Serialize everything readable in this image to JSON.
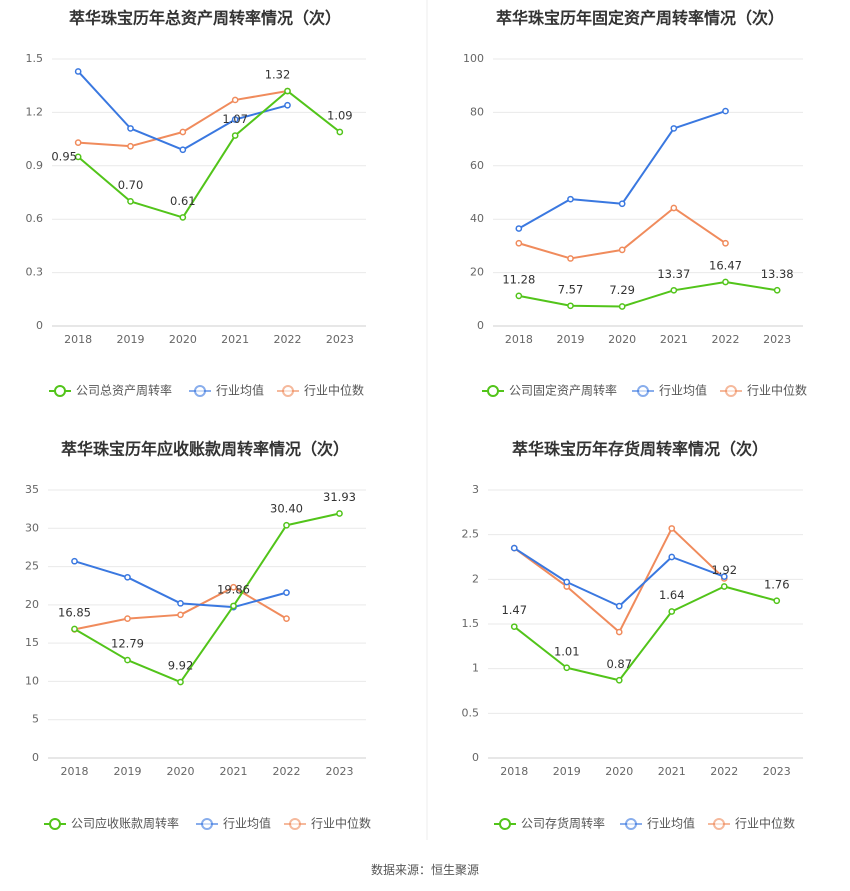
{
  "source": "数据来源：恒生聚源",
  "chart_data": [
    {
      "type": "line",
      "title": "萃华珠宝历年总资产周转率情况（次）",
      "categories": [
        "2018",
        "2019",
        "2020",
        "2021",
        "2022",
        "2023"
      ],
      "y_ticks": [
        "0",
        "0.3",
        "0.6",
        "0.9",
        "1.2",
        "1.5"
      ],
      "ylim": [
        0,
        1.5
      ],
      "series": [
        {
          "name": "公司总资产周转率",
          "color": "#52c41a",
          "values": [
            0.95,
            0.7,
            0.61,
            1.07,
            1.32,
            1.09
          ],
          "labels": [
            "0.95",
            "0.70",
            "0.61",
            "1.07",
            "1.32",
            "1.09"
          ]
        },
        {
          "name": "行业均值",
          "color": "#3a78e0",
          "values": [
            1.43,
            1.11,
            0.99,
            1.16,
            1.24,
            null
          ]
        },
        {
          "name": "行业中位数",
          "color": "#f08b5c",
          "values": [
            1.03,
            1.01,
            1.09,
            1.27,
            1.32,
            null
          ]
        }
      ]
    },
    {
      "type": "line",
      "title": "萃华珠宝历年固定资产周转率情况（次）",
      "categories": [
        "2018",
        "2019",
        "2020",
        "2021",
        "2022",
        "2023"
      ],
      "y_ticks": [
        "0",
        "20",
        "40",
        "60",
        "80",
        "100"
      ],
      "ylim": [
        0,
        100
      ],
      "series": [
        {
          "name": "公司固定资产周转率",
          "color": "#52c41a",
          "values": [
            11.28,
            7.57,
            7.29,
            13.37,
            16.47,
            13.38
          ],
          "labels": [
            "11.28",
            "7.57",
            "7.29",
            "13.37",
            "16.47",
            "13.38"
          ]
        },
        {
          "name": "行业均值",
          "color": "#3a78e0",
          "values": [
            36.5,
            47.5,
            45.8,
            74.0,
            80.5,
            null
          ]
        },
        {
          "name": "行业中位数",
          "color": "#f08b5c",
          "values": [
            31.0,
            25.3,
            28.5,
            44.2,
            31.0,
            null
          ]
        }
      ]
    },
    {
      "type": "line",
      "title": "萃华珠宝历年应收账款周转率情况（次）",
      "categories": [
        "2018",
        "2019",
        "2020",
        "2021",
        "2022",
        "2023"
      ],
      "y_ticks": [
        "0",
        "5",
        "10",
        "15",
        "20",
        "25",
        "30",
        "35"
      ],
      "ylim": [
        0,
        35
      ],
      "series": [
        {
          "name": "公司应收账款周转率",
          "color": "#52c41a",
          "values": [
            16.85,
            12.79,
            9.92,
            19.86,
            30.4,
            31.93
          ],
          "labels": [
            "16.85",
            "12.79",
            "9.92",
            "19.86",
            "30.40",
            "31.93"
          ]
        },
        {
          "name": "行业均值",
          "color": "#3a78e0",
          "values": [
            25.7,
            23.6,
            20.2,
            19.7,
            21.6,
            null
          ]
        },
        {
          "name": "行业中位数",
          "color": "#f08b5c",
          "values": [
            16.8,
            18.2,
            18.7,
            22.3,
            18.2,
            null
          ]
        }
      ]
    },
    {
      "type": "line",
      "title": "萃华珠宝历年存货周转率情况（次）",
      "categories": [
        "2018",
        "2019",
        "2020",
        "2021",
        "2022",
        "2023"
      ],
      "y_ticks": [
        "0",
        "0.5",
        "1",
        "1.5",
        "2",
        "2.5",
        "3"
      ],
      "ylim": [
        0,
        3
      ],
      "series": [
        {
          "name": "公司存货周转率",
          "color": "#52c41a",
          "values": [
            1.47,
            1.01,
            0.87,
            1.64,
            1.92,
            1.76
          ],
          "labels": [
            "1.47",
            "1.01",
            "0.87",
            "1.64",
            "1.92",
            "1.76"
          ]
        },
        {
          "name": "行业均值",
          "color": "#3a78e0",
          "values": [
            2.35,
            1.97,
            1.7,
            2.25,
            2.03,
            null
          ]
        },
        {
          "name": "行业中位数",
          "color": "#f08b5c",
          "values": [
            2.35,
            1.92,
            1.41,
            2.57,
            2.01,
            null
          ]
        }
      ]
    }
  ]
}
